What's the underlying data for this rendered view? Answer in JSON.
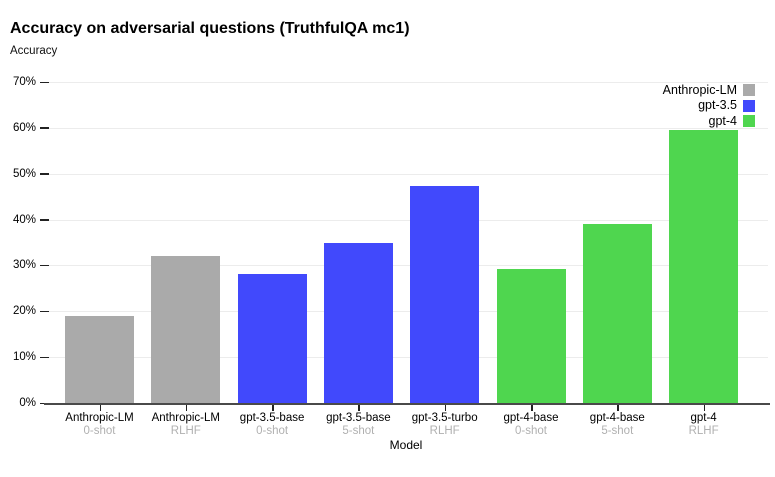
{
  "title": "Accuracy on adversarial questions (TruthfulQA mc1)",
  "y_axis_title": "Accuracy",
  "chart_data": {
    "type": "bar",
    "title": "Accuracy on adversarial questions (TruthfulQA mc1)",
    "ylabel": "Accuracy",
    "xlabel": "Model",
    "ylim": [
      0,
      70
    ],
    "ytick_interval": 10,
    "ytick_suffix": "%",
    "grid": true,
    "legend_position": "top-right",
    "legend": [
      {
        "name": "Anthropic-LM",
        "color": "#aaaaaa"
      },
      {
        "name": "gpt-3.5",
        "color": "#4149fc"
      },
      {
        "name": "gpt-4",
        "color": "#4fd64f"
      }
    ],
    "categories": [
      {
        "model": "Anthropic-LM",
        "variant": "0-shot"
      },
      {
        "model": "Anthropic-LM",
        "variant": "RLHF"
      },
      {
        "model": "gpt-3.5-base",
        "variant": "0-shot"
      },
      {
        "model": "gpt-3.5-base",
        "variant": "5-shot"
      },
      {
        "model": "gpt-3.5-turbo",
        "variant": "RLHF"
      },
      {
        "model": "gpt-4-base",
        "variant": "0-shot"
      },
      {
        "model": "gpt-4-base",
        "variant": "5-shot"
      },
      {
        "model": "gpt-4",
        "variant": "RLHF"
      }
    ],
    "series_of_each_bar": [
      "Anthropic-LM",
      "Anthropic-LM",
      "gpt-3.5",
      "gpt-3.5",
      "gpt-3.5",
      "gpt-4",
      "gpt-4",
      "gpt-4"
    ],
    "values": [
      19,
      32,
      28.2,
      34.8,
      47.4,
      29.2,
      39,
      59.5
    ]
  },
  "colors": {
    "anthropic_lm": "#aaaaaa",
    "gpt_3_5": "#4149fc",
    "gpt_4": "#4fd64f",
    "gridline": "#ececec",
    "axis": "#4a4a4a",
    "secondary_label": "#b0b0b0"
  }
}
